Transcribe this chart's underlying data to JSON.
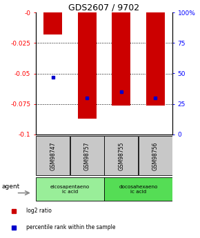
{
  "title": "GDS2607 / 9702",
  "categories": [
    "GSM98747",
    "GSM98757",
    "GSM98755",
    "GSM98756"
  ],
  "bar_values": [
    -0.018,
    -0.087,
    -0.076,
    -0.076
  ],
  "percentile_values": [
    0.47,
    0.3,
    0.35,
    0.3
  ],
  "ylim_left": [
    -0.1,
    0.0
  ],
  "ylim_right": [
    0.0,
    1.0
  ],
  "yticks_left": [
    -0.1,
    -0.075,
    -0.05,
    -0.025,
    0.0
  ],
  "ytick_labels_left": [
    "-0.1",
    "-0.075",
    "-0.05",
    "-0.025",
    "-0"
  ],
  "yticks_right": [
    0.0,
    0.25,
    0.5,
    0.75,
    1.0
  ],
  "ytick_labels_right": [
    "0",
    "25",
    "50",
    "75",
    "100%"
  ],
  "grid_lines": [
    -0.025,
    -0.05,
    -0.075
  ],
  "bar_color": "#CC0000",
  "dot_color": "#0000CC",
  "agent_groups": [
    {
      "label": "eicosapentaeno\nic acid",
      "indices": [
        0,
        1
      ],
      "color": "#99EE99"
    },
    {
      "label": "docosahexaeno\nic acid",
      "indices": [
        2,
        3
      ],
      "color": "#55DD55"
    }
  ],
  "agent_label": "agent",
  "legend_items": [
    {
      "label": "log2 ratio",
      "color": "#CC0000",
      "marker": "s"
    },
    {
      "label": "percentile rank within the sample",
      "color": "#0000CC",
      "marker": "s"
    }
  ],
  "label_area_color": "#C8C8C8",
  "bar_width": 0.55,
  "fig_width": 2.9,
  "fig_height": 3.45,
  "dpi": 100
}
